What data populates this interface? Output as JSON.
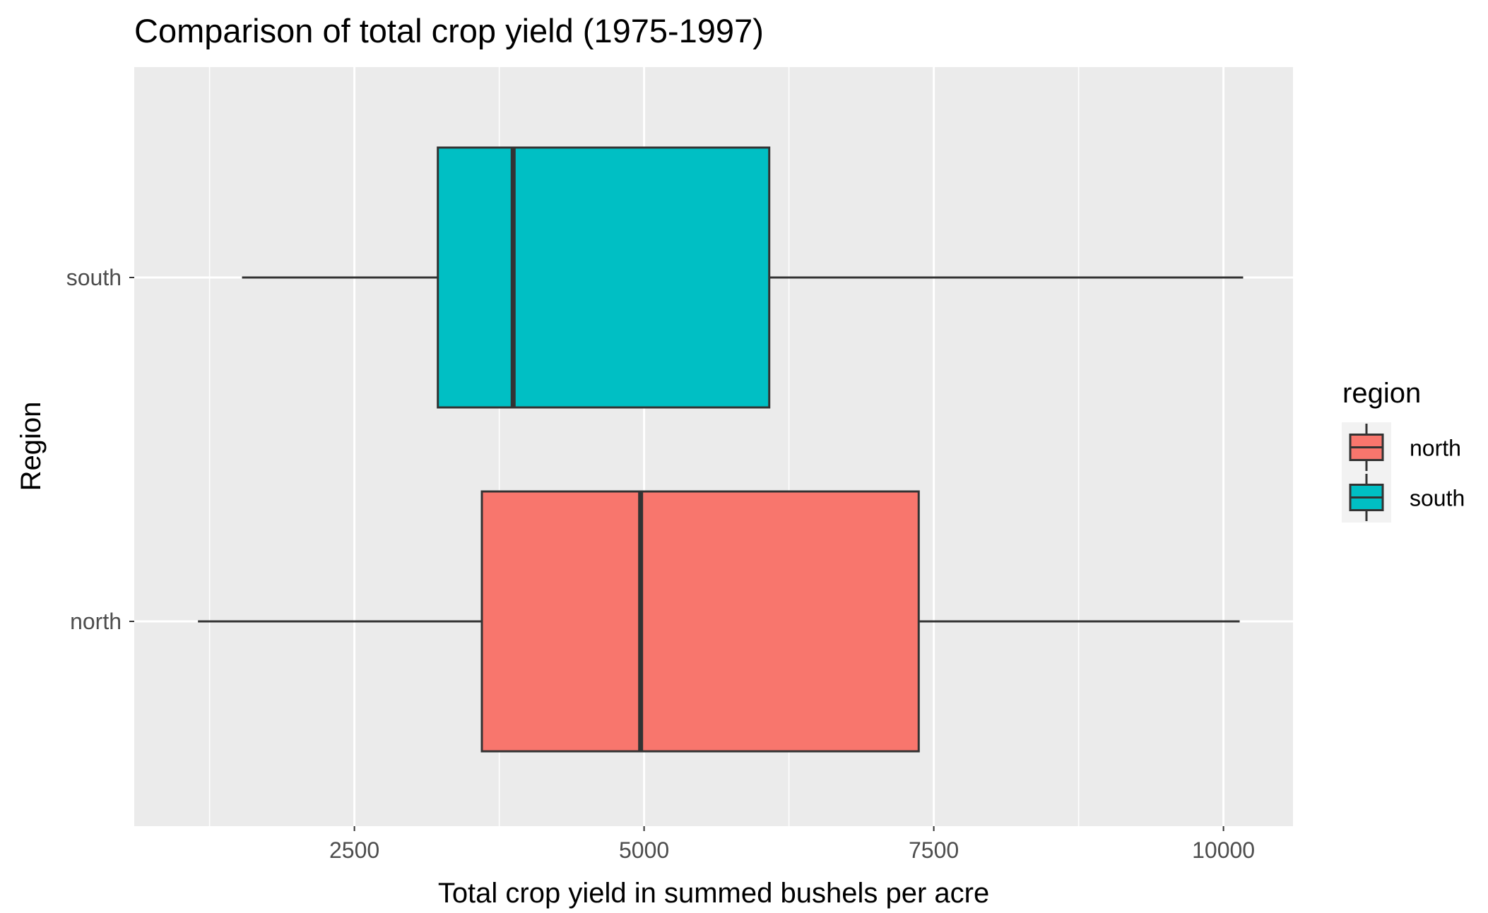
{
  "chart_data": {
    "type": "boxplot",
    "orientation": "horizontal",
    "title": "Comparison of total crop yield (1975-1997)",
    "xlabel": "Total crop yield in summed bushels per acre",
    "ylabel": "Region",
    "xlim": [
      600,
      10600
    ],
    "x_ticks": [
      2500,
      5000,
      7500,
      10000
    ],
    "x_tick_labels": [
      "2500",
      "5000",
      "7500",
      "10000"
    ],
    "grid": true,
    "legend_position": "right",
    "legend": {
      "title": "region",
      "entries": [
        {
          "label": "north",
          "color": "#F8766D"
        },
        {
          "label": "south",
          "color": "#00BFC4"
        }
      ]
    },
    "categories": [
      "north",
      "south"
    ],
    "series": [
      {
        "name": "north",
        "color": "#F8766D",
        "min": 1150,
        "q1": 3600,
        "median": 4970,
        "q3": 7370,
        "max": 10140
      },
      {
        "name": "south",
        "color": "#00BFC4",
        "min": 1530,
        "q1": 3220,
        "median": 3870,
        "q3": 6080,
        "max": 10170
      }
    ]
  },
  "colors": {
    "panel_background": "#EBEBEB",
    "grid_major": "#FFFFFF",
    "box_outline": "#333333"
  }
}
